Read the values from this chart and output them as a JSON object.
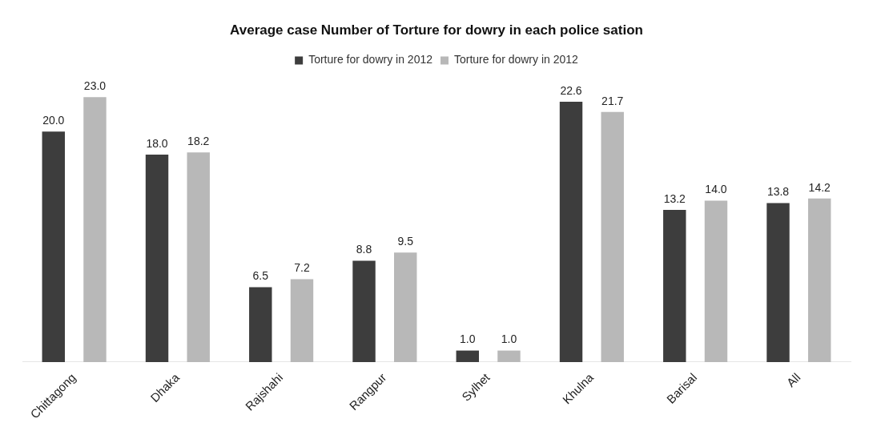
{
  "chart_data": {
    "type": "bar",
    "title": "Average case Number of Torture for dowry in each police sation",
    "categories": [
      "Chittagong",
      "Dhaka",
      "Rajshahi",
      "Rangpur",
      "Sylhet",
      "Khulna",
      "Barisal",
      "All"
    ],
    "series": [
      {
        "name": "Torture for dowry in 2012",
        "color": "#3d3d3d",
        "values": [
          20.0,
          18.0,
          6.5,
          8.8,
          1.0,
          22.6,
          13.2,
          13.8
        ],
        "value_labels": [
          "20.0",
          "18.0",
          "6.5",
          "8.8",
          "1.0",
          "22.6",
          "13.2",
          "13.8"
        ]
      },
      {
        "name": "Torture for dowry in 2012",
        "color": "#b8b8b8",
        "values": [
          23.0,
          18.2,
          7.2,
          9.5,
          1.0,
          21.7,
          14.0,
          14.2
        ],
        "value_labels": [
          "23.0",
          "18.2",
          "7.2",
          "9.5",
          "1.0",
          "21.7",
          "14.0",
          "14.2"
        ]
      }
    ],
    "legend": "top",
    "grid": false,
    "tick_labels": "x"
  }
}
